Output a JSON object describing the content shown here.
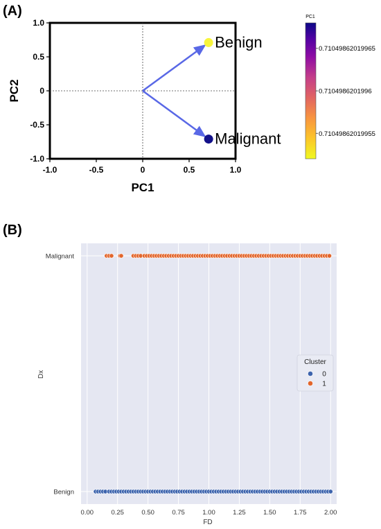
{
  "chart_data": [
    {
      "panel_label": "(A)",
      "type": "scatter",
      "subtype": "biplot",
      "xlabel": "PC1",
      "ylabel": "PC2",
      "xlim": [
        -1.0,
        1.0
      ],
      "ylim": [
        -1.0,
        1.0
      ],
      "xticks": [
        "-1.0",
        "-0.5",
        "0",
        "0.5",
        "1.0"
      ],
      "yticks": [
        "-1.0",
        "-0.5",
        "0",
        "0.5",
        "1.0"
      ],
      "xtick_values": [
        -1.0,
        -0.5,
        0,
        0.5,
        1.0
      ],
      "ytick_values": [
        -1.0,
        -0.5,
        0,
        0.5,
        1.0
      ],
      "grid": false,
      "reference_lines": "dotted lines at x=0 and y=0",
      "points": [
        {
          "label": "Benign",
          "x": 0.71,
          "y": 0.71,
          "color": "#f8f53c"
        },
        {
          "label": "Malignant",
          "x": 0.71,
          "y": -0.71,
          "color": "#13118a"
        }
      ],
      "arrows": [
        {
          "from": [
            0,
            0
          ],
          "to": [
            0.71,
            0.71
          ]
        },
        {
          "from": [
            0,
            0
          ],
          "to": [
            0.71,
            -0.71
          ]
        }
      ],
      "arrow_color": "#5968e6",
      "colorbar": {
        "title": "PC1",
        "colormap": "plasma",
        "tick_labels": [
          "0.71049862019955",
          "0.7104986201996",
          "0.71049862019965"
        ],
        "tick_values": [
          0.71049862019955,
          0.7104986201996,
          0.71049862019965
        ],
        "range": [
          0.71049862019952,
          0.71049862019968
        ]
      }
    },
    {
      "panel_label": "(B)",
      "type": "scatter",
      "subtype": "strip",
      "xlabel": "FD",
      "ylabel": "Dx",
      "xlim": [
        -0.05,
        2.05
      ],
      "xticks": [
        "0.00",
        "0.25",
        "0.50",
        "0.75",
        "1.00",
        "1.25",
        "1.50",
        "1.75",
        "2.00"
      ],
      "xtick_values": [
        0,
        0.25,
        0.5,
        0.75,
        1.0,
        1.25,
        1.5,
        1.75,
        2.0
      ],
      "categories": [
        "Malignant",
        "Benign"
      ],
      "grid": true,
      "background": "#e5e7f2",
      "legend": {
        "title": "Cluster",
        "position": "right",
        "entries": [
          {
            "label": "0",
            "color": "#3d64ad"
          },
          {
            "label": "1",
            "color": "#e2662c"
          }
        ]
      },
      "series": [
        {
          "name": "1",
          "category": "Malignant",
          "color": "#e2662c",
          "x": [
            0.16,
            0.18,
            0.2,
            0.27,
            0.28,
            0.38,
            0.4,
            0.42,
            0.44,
            0.47,
            0.49,
            0.51,
            0.53,
            0.55,
            0.57,
            0.59,
            0.61,
            0.63,
            0.65,
            0.67,
            0.69,
            0.71,
            0.73,
            0.75,
            0.77,
            0.79,
            0.81,
            0.83,
            0.85,
            0.87,
            0.89,
            0.91,
            0.93,
            0.95,
            0.97,
            0.99,
            1.01,
            1.03,
            1.05,
            1.07,
            1.09,
            1.11,
            1.13,
            1.15,
            1.17,
            1.19,
            1.21,
            1.23,
            1.25,
            1.27,
            1.29,
            1.31,
            1.33,
            1.35,
            1.37,
            1.39,
            1.41,
            1.43,
            1.45,
            1.47,
            1.49,
            1.51,
            1.53,
            1.55,
            1.57,
            1.59,
            1.61,
            1.63,
            1.65,
            1.67,
            1.69,
            1.71,
            1.73,
            1.75,
            1.77,
            1.79,
            1.81,
            1.83,
            1.85,
            1.87,
            1.89,
            1.91,
            1.93,
            1.95,
            1.97,
            1.99
          ]
        },
        {
          "name": "0",
          "category": "Benign",
          "color": "#3d64ad",
          "x": [
            0.07,
            0.09,
            0.11,
            0.13,
            0.15,
            0.18,
            0.2,
            0.22,
            0.24,
            0.26,
            0.28,
            0.3,
            0.32,
            0.34,
            0.36,
            0.38,
            0.4,
            0.42,
            0.44,
            0.46,
            0.48,
            0.5,
            0.52,
            0.54,
            0.56,
            0.58,
            0.6,
            0.62,
            0.64,
            0.66,
            0.68,
            0.7,
            0.72,
            0.74,
            0.76,
            0.78,
            0.8,
            0.82,
            0.84,
            0.86,
            0.88,
            0.9,
            0.92,
            0.94,
            0.96,
            0.98,
            1.0,
            1.02,
            1.04,
            1.06,
            1.08,
            1.1,
            1.12,
            1.14,
            1.16,
            1.18,
            1.2,
            1.22,
            1.24,
            1.26,
            1.28,
            1.3,
            1.32,
            1.34,
            1.36,
            1.38,
            1.4,
            1.42,
            1.44,
            1.46,
            1.48,
            1.5,
            1.52,
            1.54,
            1.56,
            1.58,
            1.6,
            1.62,
            1.64,
            1.66,
            1.68,
            1.7,
            1.72,
            1.74,
            1.76,
            1.78,
            1.8,
            1.82,
            1.84,
            1.86,
            1.88,
            1.9,
            1.92,
            1.94,
            1.96,
            1.98,
            2.0
          ]
        }
      ]
    }
  ]
}
